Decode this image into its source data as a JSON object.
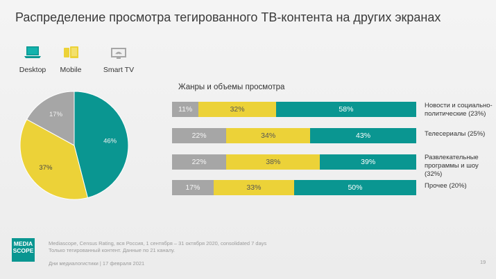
{
  "title": "Распределение просмотра тегированного ТВ-контента на других экранах",
  "devices": [
    {
      "label": "Desktop",
      "icon": "desktop-icon"
    },
    {
      "label": "Mobile",
      "icon": "mobile-icon"
    },
    {
      "label": "Smart TV",
      "icon": "smart-tv-icon"
    }
  ],
  "colors": {
    "desktop": "#0a9691",
    "mobile": "#ecd238",
    "smart_tv": "#a6a6a6"
  },
  "chart_data": [
    {
      "type": "pie",
      "slices": [
        {
          "name": "Desktop",
          "value": 46,
          "label": "46%",
          "color": "#0a9691"
        },
        {
          "name": "Mobile",
          "value": 37,
          "label": "37%",
          "color": "#ecd238"
        },
        {
          "name": "Smart TV",
          "value": 17,
          "label": "17%",
          "color": "#a6a6a6"
        }
      ]
    },
    {
      "type": "bar",
      "stacked": true,
      "orientation": "horizontal",
      "title": "Жанры и объемы просмотра",
      "categories": [
        "Новости и социально-политические (23%)",
        "Телесериалы (25%)",
        "Развлекательные программы и шоу (32%)",
        "Прочее (20%)"
      ],
      "series": [
        {
          "name": "Smart TV",
          "color": "#a6a6a6",
          "values": [
            11,
            22,
            22,
            17
          ],
          "labels": [
            "11%",
            "22%",
            "22%",
            "17%"
          ]
        },
        {
          "name": "Mobile",
          "color": "#ecd238",
          "values": [
            32,
            34,
            38,
            33
          ],
          "labels": [
            "32%",
            "34%",
            "38%",
            "33%"
          ]
        },
        {
          "name": "Desktop",
          "color": "#0a9691",
          "values": [
            58,
            43,
            39,
            50
          ],
          "labels": [
            "58%",
            "43%",
            "39%",
            "50%"
          ]
        }
      ]
    }
  ],
  "category_lines": [
    [
      "Новости и социально-",
      "политические (23%)"
    ],
    [
      "Телесериалы (25%)"
    ],
    [
      "Развлекательные",
      "программы и шоу (32%)"
    ],
    [
      "Прочее (20%)"
    ]
  ],
  "logo": {
    "line1": "MEDIA",
    "line2": "SCOPE"
  },
  "footnote": {
    "line1": "Mediascope, Census Rating, вся Россия, 1 сентября – 31 октября 2020, consolidated 7 days",
    "line2": "Только тегированный контент. Данные по 21 каналу.",
    "line3": "Дни медиалогистики | 17 февраля 2021"
  },
  "page_number": "19"
}
